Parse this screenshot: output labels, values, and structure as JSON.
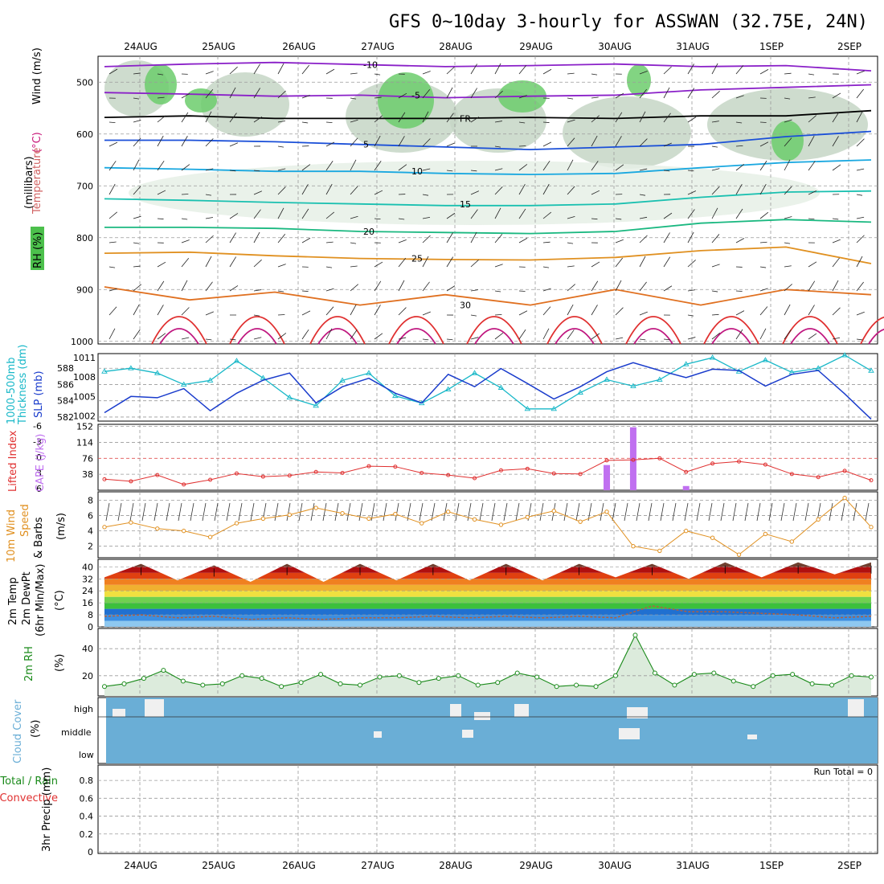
{
  "title": "GFS 0~10day 3-hourly for ASSWAN (32.75E, 24N)",
  "dates": [
    "24AUG",
    "25AUG",
    "26AUG",
    "27AUG",
    "28AUG",
    "29AUG",
    "30AUG",
    "31AUG",
    "1SEP",
    "2SEP"
  ],
  "colors": {
    "grid": "#9a9a9a",
    "thickness": "#19b8c8",
    "slp": "#1a3ccc",
    "lifted": "#e03030",
    "cape": "#c070f0",
    "wind10": "#e09020",
    "rh": "#1a8a1a",
    "cloud": "#6aaed6",
    "cloudgap": "#f0f0f0"
  },
  "labels": {
    "p1": {
      "a": "RH (%)",
      "b": "Temperature",
      "c": "(°C)",
      "d": "Wind (m/s)",
      "e": "(millibars)"
    },
    "p2": {
      "a": "1000-500mb",
      "b": "Thickness (dm)",
      "c": "SLP (mb)"
    },
    "p3": {
      "a": "Lifted Index",
      "b": "CAPE (J/kg)"
    },
    "p4": {
      "a": "10m Wind",
      "b": "Speed",
      "c": "& Barbs",
      "d": "(m/s)"
    },
    "p5": {
      "a": "2m Temp",
      "b": "2m DewPt",
      "c": "(6hr Min/Max)",
      "d": "(°C)"
    },
    "p6": {
      "a": "2m RH",
      "b": "(%)"
    },
    "p7": {
      "a": "Cloud Cover",
      "b": "(%)",
      "high": "high",
      "middle": "middle",
      "low": "low"
    },
    "p8": {
      "a": "Total / Rain",
      "b": "Convective",
      "c": "3hr Precip (mm)",
      "run": "Run Total = 0"
    }
  },
  "chart_data": [
    {
      "type": "contour",
      "panel": "upper-air",
      "ylabel": "(millibars)",
      "y_ticks": [
        500,
        600,
        700,
        800,
        900,
        1000
      ],
      "contour_labels": [
        "-10",
        "-5",
        "FR",
        "5",
        "10",
        "15",
        "20",
        "25",
        "30"
      ],
      "isotherms": [
        {
          "label": "-10",
          "p": [
            470,
            465,
            462,
            466,
            470,
            468,
            465,
            470,
            468,
            478
          ]
        },
        {
          "label": "-5",
          "p": [
            520,
            523,
            527,
            525,
            530,
            527,
            525,
            515,
            510,
            505
          ]
        },
        {
          "label": "FR",
          "p": [
            568,
            565,
            570,
            570,
            570,
            568,
            570,
            565,
            565,
            555
          ]
        },
        {
          "label": "5",
          "p": [
            612,
            612,
            615,
            620,
            625,
            630,
            625,
            620,
            605,
            595
          ]
        },
        {
          "label": "10",
          "p": [
            665,
            668,
            672,
            672,
            676,
            678,
            676,
            665,
            655,
            650
          ]
        },
        {
          "label": "15",
          "p": [
            725,
            728,
            732,
            735,
            738,
            738,
            735,
            722,
            712,
            710
          ]
        },
        {
          "label": "20",
          "p": [
            780,
            780,
            782,
            788,
            790,
            792,
            788,
            772,
            765,
            770
          ]
        },
        {
          "label": "25",
          "p": [
            830,
            828,
            835,
            840,
            842,
            843,
            838,
            825,
            818,
            850
          ]
        },
        {
          "label": "30",
          "p": [
            895,
            920,
            905,
            930,
            910,
            930,
            900,
            930,
            900,
            910
          ]
        }
      ]
    },
    {
      "type": "line",
      "panel": "thickness-slp",
      "y_left_ticks": [
        582,
        584,
        586,
        588
      ],
      "y_right_ticks": [
        1002,
        1005,
        1008,
        1011
      ],
      "series": [
        {
          "name": "1000-500mb Thickness (dm)",
          "values": [
            587.6,
            588.0,
            587.4,
            586.0,
            586.5,
            588.9,
            586.8,
            584.4,
            583.4,
            586.5,
            587.4,
            584.6,
            583.7,
            585.4,
            587.4,
            585.6,
            583.0,
            583.0,
            585.0,
            586.6,
            585.8,
            586.6,
            588.5,
            589.3,
            587.6,
            589.0,
            587.5,
            588.0,
            589.6,
            587.7
          ]
        },
        {
          "name": "SLP (mb)",
          "values": [
            1002.5,
            1005.0,
            1004.8,
            1006.2,
            1002.8,
            1005.5,
            1007.5,
            1008.6,
            1004.0,
            1006.5,
            1007.8,
            1005.5,
            1004.0,
            1008.4,
            1006.5,
            1009.3,
            1007.0,
            1004.6,
            1006.5,
            1008.8,
            1010.2,
            1009.0,
            1007.9,
            1009.2,
            1009.0,
            1006.6,
            1008.4,
            1009.0,
            1005.4,
            1001.5
          ]
        }
      ]
    },
    {
      "type": "bar",
      "panel": "lifted-cape",
      "y_left_ticks": [
        6,
        3,
        0,
        -3,
        -6
      ],
      "y_right_ticks": [
        38,
        76,
        114,
        152
      ],
      "series": [
        {
          "name": "Lifted Index",
          "values": [
            4.2,
            4.6,
            3.4,
            5.2,
            4.3,
            3.1,
            3.7,
            3.5,
            2.8,
            3.0,
            1.7,
            1.8,
            3.0,
            3.4,
            4.0,
            2.5,
            2.2,
            3.1,
            3.2,
            0.6,
            0.5,
            0.2,
            2.8,
            1.2,
            0.8,
            1.4,
            3.2,
            3.8,
            2.6,
            4.4
          ]
        },
        {
          "name": "CAPE (J/kg)",
          "values": [
            0,
            0,
            0,
            0,
            0,
            0,
            0,
            0,
            0,
            0,
            0,
            0,
            0,
            0,
            0,
            0,
            0,
            0,
            0,
            60,
            150,
            0,
            10,
            0,
            0,
            0,
            0,
            0,
            0,
            0
          ]
        }
      ]
    },
    {
      "type": "line",
      "panel": "wind10m",
      "ylabel": "(m/s)",
      "y_ticks": [
        2,
        4,
        6,
        8
      ],
      "values": [
        4.5,
        5.1,
        4.3,
        4.0,
        3.2,
        5.0,
        5.6,
        6.1,
        7.0,
        6.3,
        5.6,
        6.2,
        5.0,
        6.5,
        5.5,
        4.8,
        5.8,
        6.6,
        5.2,
        6.5,
        2.0,
        1.4,
        4.0,
        3.1,
        0.9,
        3.6,
        2.6,
        5.5,
        8.3,
        4.5
      ]
    },
    {
      "type": "area",
      "panel": "temp-dewpoint",
      "ylabel": "(°C)",
      "y_ticks": [
        0,
        8,
        16,
        24,
        32,
        40
      ],
      "series": [
        {
          "name": "2m Temp",
          "values": [
            33,
            42,
            31,
            41,
            30,
            42,
            30,
            42,
            31,
            42,
            31,
            42,
            31,
            42,
            33,
            42,
            32,
            43,
            33,
            43,
            35,
            43
          ]
        },
        {
          "name": "2m DewPt",
          "values": [
            7,
            8,
            6,
            7,
            5,
            6,
            5,
            6,
            6,
            7,
            6,
            7,
            6,
            7,
            6,
            14,
            10,
            10,
            9,
            8,
            6,
            7
          ]
        }
      ]
    },
    {
      "type": "line",
      "panel": "rh2m",
      "ylabel": "(%)",
      "y_ticks": [
        20,
        40
      ],
      "values": [
        12,
        14,
        18,
        24,
        16,
        13,
        14,
        20,
        18,
        12,
        15,
        21,
        14,
        13,
        19,
        20,
        15,
        18,
        20,
        13,
        15,
        22,
        19,
        12,
        13,
        12,
        20,
        50,
        22,
        13,
        21,
        22,
        16,
        12,
        20,
        21,
        14,
        13,
        20,
        19
      ]
    },
    {
      "type": "heatmap",
      "panel": "cloud-cover",
      "ylabel": "(%)",
      "rows": [
        "high",
        "middle",
        "low"
      ]
    },
    {
      "type": "bar",
      "panel": "precip",
      "ylabel": "3hr Precip (mm)",
      "y_ticks": [
        0,
        0.2,
        0.4,
        0.6,
        0.8
      ],
      "ylim": [
        0,
        0.9
      ],
      "run_total_text": "Run Total = 0",
      "values": [
        0,
        0,
        0,
        0,
        0,
        0,
        0,
        0,
        0,
        0
      ]
    }
  ]
}
